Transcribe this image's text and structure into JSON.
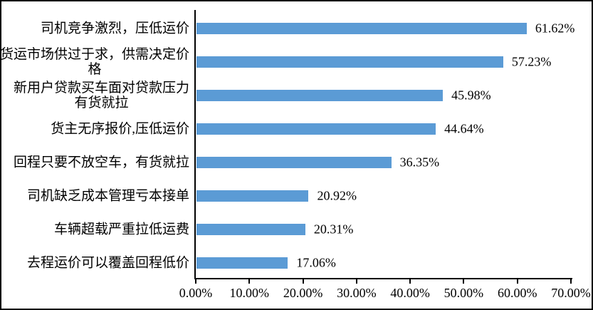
{
  "chart_data": {
    "type": "bar",
    "orientation": "horizontal",
    "title": "",
    "xlabel": "",
    "ylabel": "",
    "categories": [
      "司机竞争激烈，压低运价",
      "货运市场供过于求，供需决定价\n格",
      "新用户贷款买车面对贷款压力\n有货就拉",
      "货主无序报价,压低运价",
      "回程只要不放空车，有货就拉",
      "司机缺乏成本管理亏本接单",
      "车辆超载严重拉低运费",
      "去程运价可以覆盖回程低价"
    ],
    "values": [
      61.62,
      57.23,
      45.98,
      44.64,
      36.35,
      20.92,
      20.31,
      17.06
    ],
    "value_labels": [
      "61.62%",
      "57.23%",
      "45.98%",
      "44.64%",
      "36.35%",
      "20.92%",
      "20.31%",
      "17.06%"
    ],
    "xlim": [
      0,
      70
    ],
    "x_tick_step": 10,
    "x_tick_labels": [
      "0.00%",
      "10.00%",
      "20.00%",
      "30.00%",
      "40.00%",
      "50.00%",
      "60.00%",
      "70.00%"
    ],
    "grid": false,
    "legend": "none",
    "colors": {
      "bar": "#5B9BD5",
      "axis": "#000000",
      "text": "#000000",
      "background": "#FFFFFF",
      "frame_border": "#000000"
    }
  }
}
